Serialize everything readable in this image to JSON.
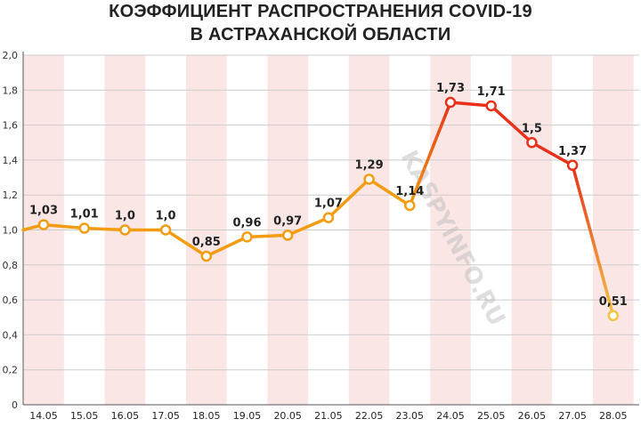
{
  "header": {
    "title_line_1": "КОЭФФИЦИЕНТ РАСПРОСТРАНЕНИЯ COVID-19",
    "title_line_2": "В АСТРАХАНСКОЙ ОБЛАСТИ"
  },
  "watermark": "KASPYINFO.RU",
  "chart_data": {
    "type": "line",
    "title": "КОЭФФИЦИЕНТ РАСПРОСТРАНЕНИЯ COVID-19 В АСТРАХАНСКОЙ ОБЛАСТИ",
    "xlabel": "",
    "ylabel": "",
    "ylim": [
      0,
      2.0
    ],
    "y_ticks": [
      "0",
      "0,2",
      "0,4",
      "0,6",
      "0,8",
      "1,0",
      "1,2",
      "1,4",
      "1,6",
      "1,8",
      "2,0"
    ],
    "y_tick_values": [
      0,
      0.2,
      0.4,
      0.6,
      0.8,
      1.0,
      1.2,
      1.4,
      1.6,
      1.8,
      2.0
    ],
    "grid": true,
    "legend": "none",
    "categories": [
      "14.05",
      "15.05",
      "16.05",
      "17.05",
      "18.05",
      "19.05",
      "20.05",
      "21.05",
      "22.05",
      "23.05",
      "24.05",
      "25.05",
      "26.05",
      "27.05",
      "28.05"
    ],
    "series": [
      {
        "values": [
          1.03,
          1.01,
          1.0,
          1.0,
          0.85,
          0.96,
          0.97,
          1.07,
          1.29,
          1.14,
          1.73,
          1.71,
          1.5,
          1.37,
          0.51
        ],
        "labels": [
          "1,03",
          "1,01",
          "1,0",
          "1,0",
          "0,85",
          "0,96",
          "0,97",
          "1,07",
          "1,29",
          "1,14",
          "1,73",
          "1,71",
          "1,5",
          "1,37",
          "0,51"
        ],
        "line_start_value": 1.0
      }
    ],
    "colors": {
      "orange": "#f39c12",
      "red": "#e8301a",
      "yellow": "#f5c242",
      "stripe": "#fbe6e6",
      "grid": "#cccccc"
    }
  }
}
